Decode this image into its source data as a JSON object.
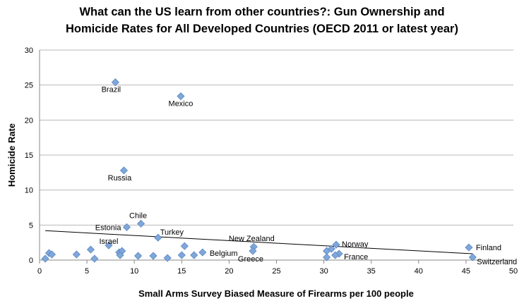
{
  "chart_data": {
    "type": "scatter",
    "title_lines": [
      "What can the US learn from other countries?: Gun Ownership and",
      "Homicide Rates for All Developed Countries (OECD 2011 or latest year)"
    ],
    "xlabel": "Small Arms Survey Biased Measure of Firearms per 100 people",
    "ylabel": "Homicide Rate",
    "xlim": [
      0,
      50
    ],
    "ylim": [
      0,
      30
    ],
    "xticks": [
      0,
      5,
      10,
      15,
      20,
      25,
      30,
      35,
      40,
      45,
      50
    ],
    "yticks": [
      0,
      5,
      10,
      15,
      20,
      25,
      30
    ],
    "grid": "horizontal",
    "marker_color": "#7fa7d9",
    "trendline": {
      "type": "linear",
      "points": [
        [
          0.6,
          4.2
        ],
        [
          45.7,
          0.9
        ]
      ]
    },
    "points": [
      {
        "x": 8.0,
        "y": 25.4,
        "label": "Brazil"
      },
      {
        "x": 14.9,
        "y": 23.4,
        "label": "Mexico"
      },
      {
        "x": 8.9,
        "y": 12.8,
        "label": "Russia"
      },
      {
        "x": 10.7,
        "y": 5.2,
        "label": "Chile"
      },
      {
        "x": 9.2,
        "y": 4.7,
        "label": "Estonia"
      },
      {
        "x": 12.5,
        "y": 3.2,
        "label": "Turkey"
      },
      {
        "x": 7.3,
        "y": 2.1,
        "label": "Israel"
      },
      {
        "x": 22.6,
        "y": 1.9,
        "label": "New Zealand"
      },
      {
        "x": 22.5,
        "y": 1.3,
        "label": "Greece"
      },
      {
        "x": 17.2,
        "y": 1.1,
        "label": "Belgium"
      },
      {
        "x": 31.3,
        "y": 2.2,
        "label": "Norway"
      },
      {
        "x": 31.6,
        "y": 0.9,
        "label": "France"
      },
      {
        "x": 45.3,
        "y": 1.8,
        "label": "Finland"
      },
      {
        "x": 45.7,
        "y": 0.4,
        "label": "Switzerland"
      },
      {
        "x": 0.6,
        "y": 0.2
      },
      {
        "x": 1.0,
        "y": 1.0
      },
      {
        "x": 1.3,
        "y": 0.8
      },
      {
        "x": 3.9,
        "y": 0.8
      },
      {
        "x": 5.4,
        "y": 1.5
      },
      {
        "x": 5.8,
        "y": 0.2
      },
      {
        "x": 8.4,
        "y": 1.1
      },
      {
        "x": 8.7,
        "y": 1.3
      },
      {
        "x": 8.5,
        "y": 0.7
      },
      {
        "x": 10.4,
        "y": 0.6
      },
      {
        "x": 12.0,
        "y": 0.6
      },
      {
        "x": 13.5,
        "y": 0.3
      },
      {
        "x": 15.0,
        "y": 0.7
      },
      {
        "x": 15.3,
        "y": 2.0
      },
      {
        "x": 16.3,
        "y": 0.7
      },
      {
        "x": 30.3,
        "y": 1.3
      },
      {
        "x": 30.8,
        "y": 1.6
      },
      {
        "x": 30.3,
        "y": 0.4
      },
      {
        "x": 31.2,
        "y": 0.7
      }
    ]
  }
}
